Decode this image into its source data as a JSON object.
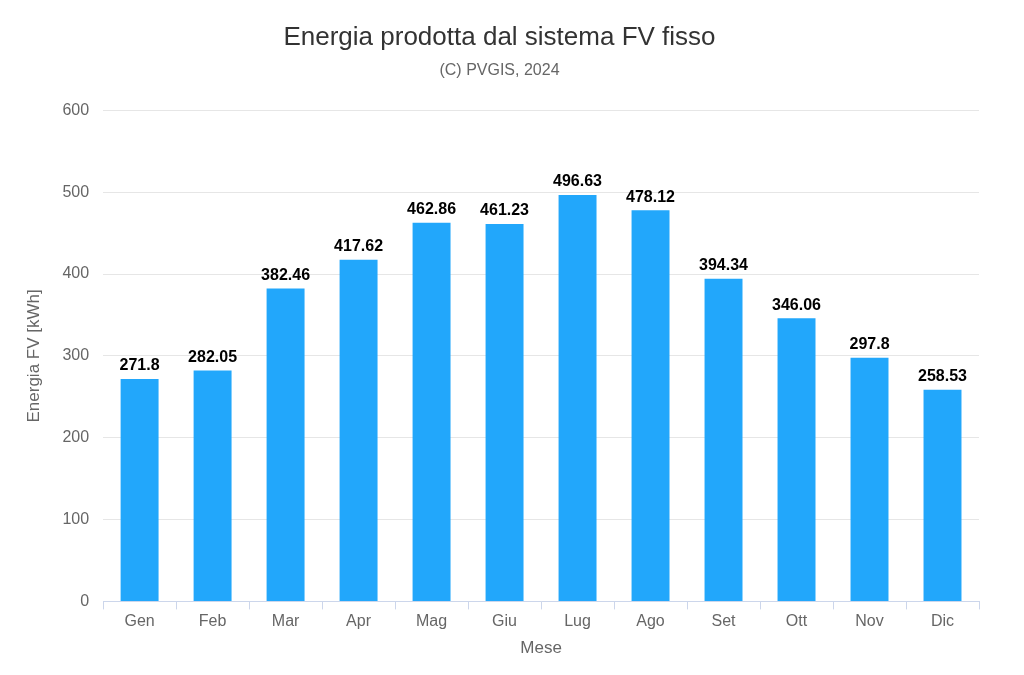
{
  "chart_data": {
    "type": "bar",
    "title": "Energia prodotta dal sistema FV fisso",
    "subtitle": "(C) PVGIS, 2024",
    "x_label": "Mese",
    "y_label": "Energia FV [kWh]",
    "categories": [
      "Gen",
      "Feb",
      "Mar",
      "Apr",
      "Mag",
      "Giu",
      "Lug",
      "Ago",
      "Set",
      "Ott",
      "Nov",
      "Dic"
    ],
    "values": [
      271.8,
      282.05,
      382.46,
      417.62,
      462.86,
      461.23,
      496.63,
      478.12,
      394.34,
      346.06,
      297.8,
      258.53
    ],
    "color": "#22a7fb",
    "ylim": [
      0,
      600
    ],
    "yticks": [
      0,
      100,
      200,
      300,
      400,
      500,
      600
    ],
    "grid": true,
    "data_labels": true
  }
}
